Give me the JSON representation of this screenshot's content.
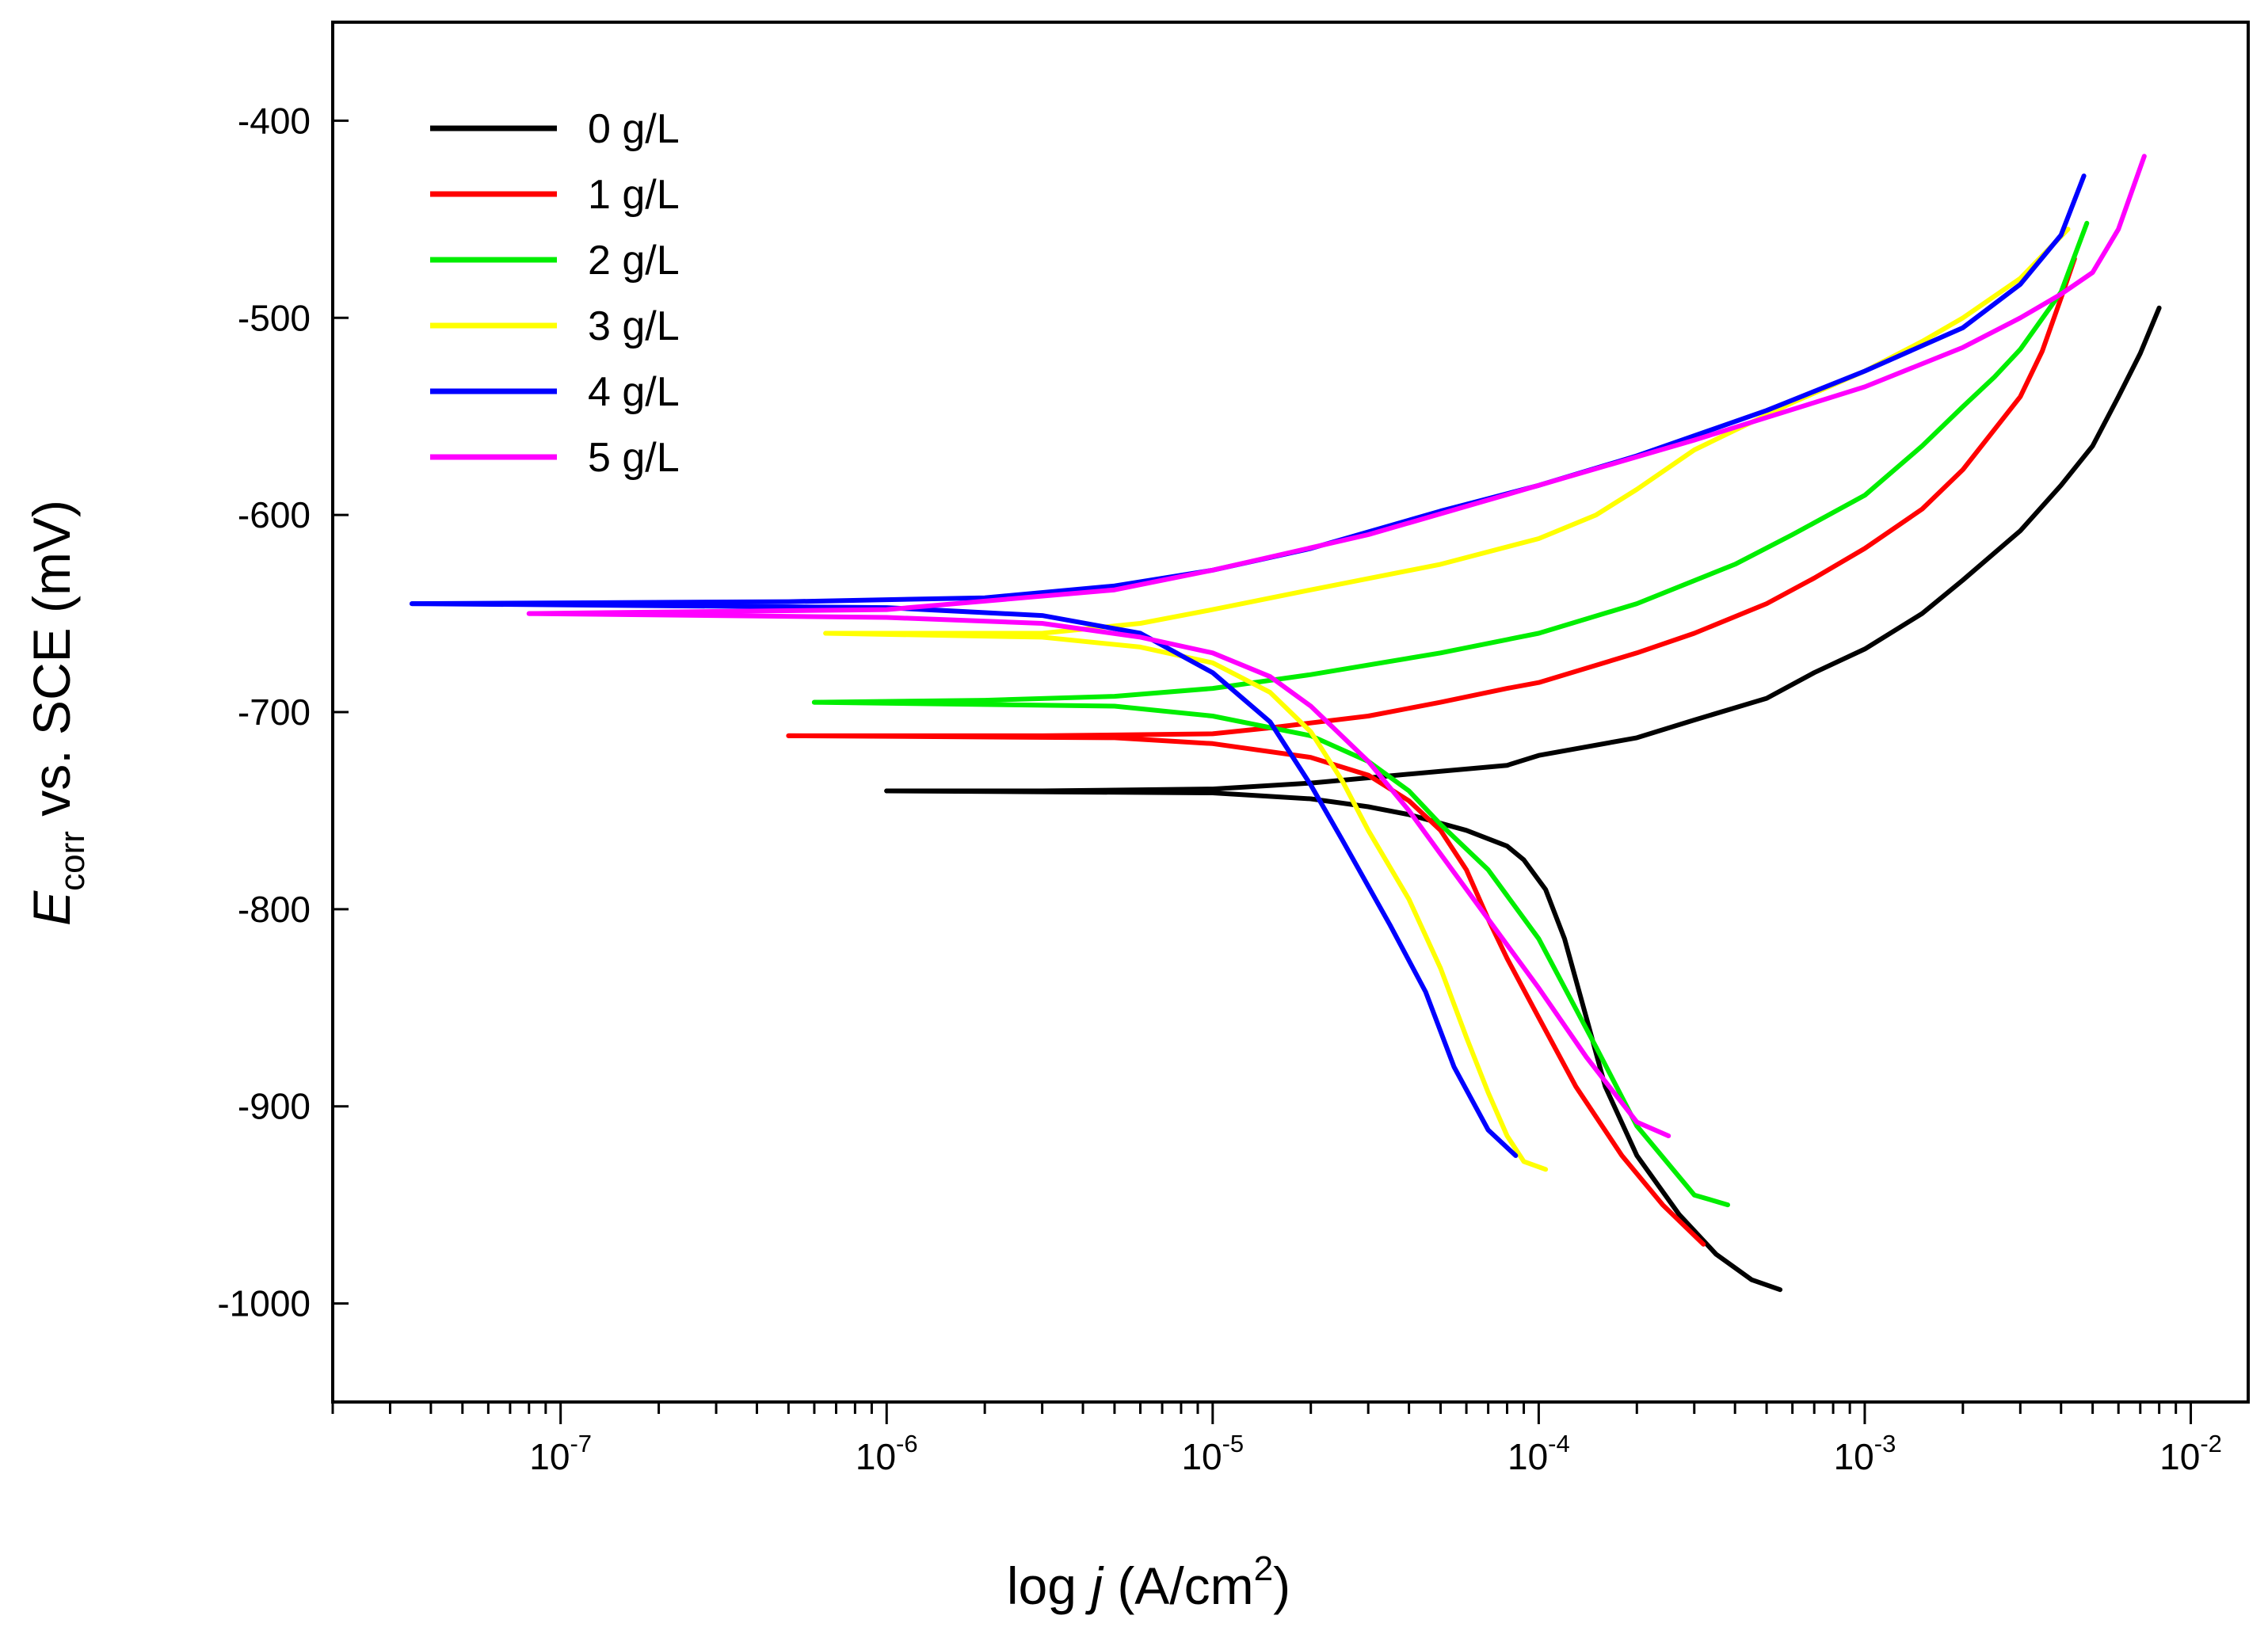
{
  "chart_data": {
    "type": "line",
    "title": "",
    "xlabel": {
      "prefix": "log ",
      "italic": "j",
      "unit": " (A/cm",
      "sup": "2",
      "close": ")"
    },
    "ylabel": {
      "italic": "E",
      "sub": "corr",
      "rest": " vs. SCE (mV)"
    },
    "x_scale": "log",
    "xlim": [
      2e-08,
      0.015
    ],
    "ylim": [
      -1050,
      -350
    ],
    "x_ticks": [
      {
        "base": "10",
        "exp": "-7",
        "value": 1e-07
      },
      {
        "base": "10",
        "exp": "-6",
        "value": 1e-06
      },
      {
        "base": "10",
        "exp": "-5",
        "value": 1e-05
      },
      {
        "base": "10",
        "exp": "-4",
        "value": 0.0001
      },
      {
        "base": "10",
        "exp": "-3",
        "value": 0.001
      },
      {
        "base": "10",
        "exp": "-2",
        "value": 0.01
      }
    ],
    "y_ticks": [
      {
        "label": "-400",
        "value": -400
      },
      {
        "label": "-500",
        "value": -500
      },
      {
        "label": "-600",
        "value": -600
      },
      {
        "label": "-700",
        "value": -700
      },
      {
        "label": "-800",
        "value": -800
      },
      {
        "label": "-900",
        "value": -900
      },
      {
        "label": "-1000",
        "value": -1000
      }
    ],
    "legend_position": "top-left",
    "series": [
      {
        "name": "0 g/L",
        "color": "#000000",
        "anodic": [
          [
            1e-06,
            -740
          ],
          [
            3e-06,
            -740
          ],
          [
            1e-05,
            -739
          ],
          [
            2e-05,
            -736
          ],
          [
            5e-05,
            -730
          ],
          [
            8e-05,
            -727
          ],
          [
            0.0001,
            -722
          ],
          [
            0.0002,
            -713
          ],
          [
            0.0003,
            -704
          ],
          [
            0.0005,
            -693
          ],
          [
            0.0007,
            -680
          ],
          [
            0.001,
            -668
          ],
          [
            0.0015,
            -650
          ],
          [
            0.002,
            -633
          ],
          [
            0.003,
            -608
          ],
          [
            0.004,
            -585
          ],
          [
            0.005,
            -565
          ],
          [
            0.006,
            -540
          ],
          [
            0.007,
            -518
          ],
          [
            0.008,
            -495
          ]
        ],
        "cathodic": [
          [
            1e-06,
            -740
          ],
          [
            1e-05,
            -741
          ],
          [
            2e-05,
            -744
          ],
          [
            3e-05,
            -748
          ],
          [
            4e-05,
            -752
          ],
          [
            6e-05,
            -760
          ],
          [
            8e-05,
            -768
          ],
          [
            9e-05,
            -775
          ],
          [
            0.000105,
            -790
          ],
          [
            0.00012,
            -815
          ],
          [
            0.00014,
            -855
          ],
          [
            0.00016,
            -890
          ],
          [
            0.0002,
            -925
          ],
          [
            0.00027,
            -955
          ],
          [
            0.00035,
            -975
          ],
          [
            0.00045,
            -988
          ],
          [
            0.00055,
            -993
          ]
        ]
      },
      {
        "name": "1 g/L",
        "color": "#ff0000",
        "anodic": [
          [
            5e-07,
            -712
          ],
          [
            3e-06,
            -712
          ],
          [
            1e-05,
            -711
          ],
          [
            1.5e-05,
            -708
          ],
          [
            3e-05,
            -702
          ],
          [
            5e-05,
            -695
          ],
          [
            8e-05,
            -688
          ],
          [
            0.0001,
            -685
          ],
          [
            0.0002,
            -670
          ],
          [
            0.0003,
            -660
          ],
          [
            0.0005,
            -645
          ],
          [
            0.0007,
            -632
          ],
          [
            0.001,
            -617
          ],
          [
            0.0015,
            -597
          ],
          [
            0.002,
            -577
          ],
          [
            0.003,
            -540
          ],
          [
            0.0035,
            -517
          ],
          [
            0.004,
            -490
          ],
          [
            0.0044,
            -470
          ]
        ],
        "cathodic": [
          [
            5e-07,
            -712
          ],
          [
            5e-06,
            -713
          ],
          [
            1e-05,
            -716
          ],
          [
            2e-05,
            -723
          ],
          [
            3e-05,
            -732
          ],
          [
            4e-05,
            -745
          ],
          [
            5e-05,
            -760
          ],
          [
            6e-05,
            -780
          ],
          [
            7e-05,
            -805
          ],
          [
            8e-05,
            -825
          ],
          [
            0.0001,
            -855
          ],
          [
            0.00013,
            -890
          ],
          [
            0.00018,
            -925
          ],
          [
            0.00024,
            -950
          ],
          [
            0.00032,
            -970
          ]
        ]
      },
      {
        "name": "2 g/L",
        "color": "#00ee00",
        "anodic": [
          [
            6e-07,
            -695
          ],
          [
            2e-06,
            -694
          ],
          [
            5e-06,
            -692
          ],
          [
            1e-05,
            -688
          ],
          [
            2e-05,
            -681
          ],
          [
            5e-05,
            -670
          ],
          [
            0.0001,
            -660
          ],
          [
            0.0002,
            -645
          ],
          [
            0.0004,
            -625
          ],
          [
            0.0006,
            -610
          ],
          [
            0.001,
            -590
          ],
          [
            0.0015,
            -565
          ],
          [
            0.002,
            -545
          ],
          [
            0.0025,
            -530
          ],
          [
            0.003,
            -516
          ],
          [
            0.004,
            -487
          ],
          [
            0.0048,
            -452
          ]
        ],
        "cathodic": [
          [
            6e-07,
            -695
          ],
          [
            5e-06,
            -697
          ],
          [
            1e-05,
            -702
          ],
          [
            2e-05,
            -712
          ],
          [
            3e-05,
            -725
          ],
          [
            4e-05,
            -740
          ],
          [
            5e-05,
            -757
          ],
          [
            7e-05,
            -780
          ],
          [
            0.0001,
            -815
          ],
          [
            0.00015,
            -870
          ],
          [
            0.0002,
            -910
          ],
          [
            0.0003,
            -945
          ],
          [
            0.00038,
            -950
          ]
        ]
      },
      {
        "name": "3 g/L",
        "color": "#ffff00",
        "anodic": [
          [
            6.5e-07,
            -660
          ],
          [
            3e-06,
            -660
          ],
          [
            6e-06,
            -655
          ],
          [
            1e-05,
            -648
          ],
          [
            2e-05,
            -638
          ],
          [
            5e-05,
            -625
          ],
          [
            0.0001,
            -612
          ],
          [
            0.00015,
            -600
          ],
          [
            0.0002,
            -587
          ],
          [
            0.0003,
            -567
          ],
          [
            0.0004,
            -557
          ],
          [
            0.0006,
            -543
          ],
          [
            0.001,
            -527
          ],
          [
            0.0015,
            -512
          ],
          [
            0.002,
            -500
          ],
          [
            0.003,
            -480
          ],
          [
            0.0042,
            -455
          ]
        ],
        "cathodic": [
          [
            6.5e-07,
            -660
          ],
          [
            3e-06,
            -662
          ],
          [
            6e-06,
            -667
          ],
          [
            1e-05,
            -675
          ],
          [
            1.5e-05,
            -690
          ],
          [
            2e-05,
            -710
          ],
          [
            2.5e-05,
            -735
          ],
          [
            3e-05,
            -760
          ],
          [
            4e-05,
            -795
          ],
          [
            5e-05,
            -830
          ],
          [
            6e-05,
            -865
          ],
          [
            7e-05,
            -893
          ],
          [
            8e-05,
            -915
          ],
          [
            9e-05,
            -928
          ],
          [
            0.000105,
            -932
          ]
        ]
      },
      {
        "name": "4 g/L",
        "color": "#0000ff",
        "anodic": [
          [
            3.5e-08,
            -645
          ],
          [
            5e-07,
            -644
          ],
          [
            2e-06,
            -642
          ],
          [
            5e-06,
            -636
          ],
          [
            1e-05,
            -628
          ],
          [
            2e-05,
            -617
          ],
          [
            5e-05,
            -598
          ],
          [
            0.0001,
            -585
          ],
          [
            0.0002,
            -570
          ],
          [
            0.0005,
            -547
          ],
          [
            0.001,
            -527
          ],
          [
            0.002,
            -505
          ],
          [
            0.003,
            -483
          ],
          [
            0.004,
            -458
          ],
          [
            0.0047,
            -428
          ]
        ],
        "cathodic": [
          [
            3.5e-08,
            -645
          ],
          [
            1e-06,
            -647
          ],
          [
            3e-06,
            -651
          ],
          [
            6e-06,
            -660
          ],
          [
            1e-05,
            -680
          ],
          [
            1.5e-05,
            -705
          ],
          [
            2e-05,
            -737
          ],
          [
            2.5e-05,
            -765
          ],
          [
            3.5e-05,
            -808
          ],
          [
            4.5e-05,
            -842
          ],
          [
            5.5e-05,
            -880
          ],
          [
            7e-05,
            -912
          ],
          [
            8.5e-05,
            -925
          ]
        ]
      },
      {
        "name": "5 g/L",
        "color": "#ff00ff",
        "anodic": [
          [
            8e-08,
            -650
          ],
          [
            1e-06,
            -648
          ],
          [
            5e-06,
            -638
          ],
          [
            1e-05,
            -628
          ],
          [
            3e-05,
            -610
          ],
          [
            0.0001,
            -585
          ],
          [
            0.0003,
            -562
          ],
          [
            0.001,
            -535
          ],
          [
            0.002,
            -515
          ],
          [
            0.003,
            -500
          ],
          [
            0.004,
            -488
          ],
          [
            0.005,
            -477
          ],
          [
            0.006,
            -455
          ],
          [
            0.0072,
            -418
          ]
        ],
        "cathodic": [
          [
            8e-08,
            -650
          ],
          [
            1e-06,
            -652
          ],
          [
            3e-06,
            -655
          ],
          [
            6e-06,
            -662
          ],
          [
            1e-05,
            -670
          ],
          [
            1.5e-05,
            -682
          ],
          [
            2e-05,
            -697
          ],
          [
            3e-05,
            -725
          ],
          [
            4e-05,
            -750
          ],
          [
            5e-05,
            -772
          ],
          [
            7e-05,
            -805
          ],
          [
            0.0001,
            -840
          ],
          [
            0.00014,
            -875
          ],
          [
            0.0002,
            -908
          ],
          [
            0.00025,
            -915
          ]
        ]
      }
    ]
  }
}
